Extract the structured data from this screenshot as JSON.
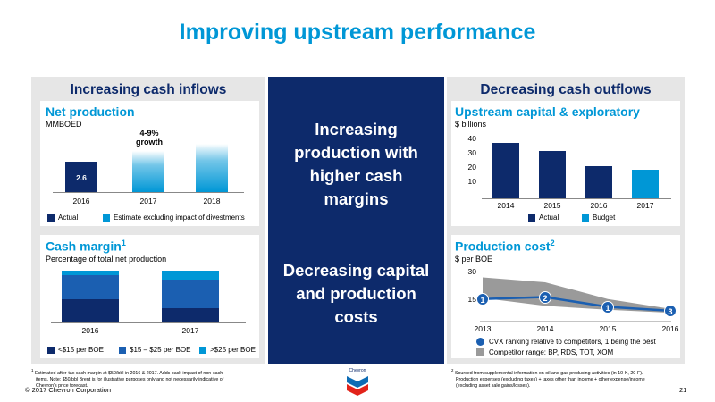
{
  "title": "Improving upstream performance",
  "left": {
    "header": "Increasing cash inflows",
    "net_production": {
      "title": "Net production",
      "unit": "MMBOED",
      "growth_label_line1": "4-9%",
      "growth_label_line2": "growth",
      "value_label": "2.6",
      "legend": [
        "Actual",
        "Estimate excluding impact of divestments"
      ]
    },
    "cash_margin": {
      "title": "Cash margin",
      "title_sup": "1",
      "unit": "Percentage of total net production",
      "legend": [
        "<$15 per BOE",
        "$15 – $25 per BOE",
        ">$25 per BOE"
      ]
    }
  },
  "center": {
    "text1_lines": [
      "Increasing",
      "production with",
      "higher cash",
      "margins"
    ],
    "text2_lines": [
      "Decreasing capital",
      "and production",
      "costs"
    ]
  },
  "right": {
    "header": "Decreasing cash outflows",
    "capex": {
      "title": "Upstream capital & exploratory",
      "unit": "$ billions",
      "legend": [
        "Actual",
        "Budget"
      ]
    },
    "production_cost": {
      "title": "Production cost",
      "title_sup": "2",
      "unit": "$ per BOE",
      "legend": [
        "CVX ranking relative to competitors, 1 being the best",
        "Competitor range: BP, RDS, TOT, XOM"
      ]
    }
  },
  "footnotes": {
    "left": [
      "Estimated after-tax cash margin at $50/bbl in 2016 & 2017. Adds back impact of non-cash",
      "items. Note: $50/bbl Brent is for illustrative purposes only and not necessarily indicative of",
      "Chevron's price forecast."
    ],
    "left_sup": "1",
    "right": [
      "Sourced from supplemental information on oil and gas producing activities (in 10-K, 20-F).",
      "Production expenses (excluding taxes) + taxes other than income + other expense/income",
      "(excluding asset sale gains/losses)."
    ],
    "right_sup": "2"
  },
  "logo_text": "Chevron",
  "copyright": "© 2017 Chevron Corporation",
  "page_number": "21",
  "chart_data": [
    {
      "type": "bar",
      "title": "Net production",
      "ylabel": "MMBOED",
      "categories": [
        "2016",
        "2017",
        "2018"
      ],
      "series": [
        {
          "name": "Actual",
          "values": [
            2.6,
            null,
            null
          ]
        },
        {
          "name": "Estimate excluding impact of divestments",
          "values": [
            null,
            2.8,
            3.0
          ]
        }
      ],
      "annotations": [
        "2.6",
        "4-9% growth"
      ]
    },
    {
      "type": "bar",
      "stacked": true,
      "title": "Cash margin",
      "ylabel": "Percentage of total net production",
      "categories": [
        "2016",
        "2017"
      ],
      "series": [
        {
          "name": "<$15 per BOE",
          "values": [
            46,
            28
          ]
        },
        {
          "name": "$15 – $25 per BOE",
          "values": [
            46,
            56
          ]
        },
        {
          "name": ">$25 per BOE",
          "values": [
            8,
            16
          ]
        }
      ]
    },
    {
      "type": "bar",
      "title": "Upstream capital & exploratory",
      "ylabel": "$ billions",
      "categories": [
        "2014",
        "2015",
        "2016",
        "2017"
      ],
      "yticks": [
        10,
        20,
        30,
        40
      ],
      "ylim": [
        0,
        45
      ],
      "series": [
        {
          "name": "Actual",
          "values": [
            40,
            34,
            22,
            null
          ]
        },
        {
          "name": "Budget",
          "values": [
            null,
            null,
            null,
            20
          ]
        }
      ]
    },
    {
      "type": "line",
      "title": "Production cost",
      "ylabel": "$ per BOE",
      "x": [
        "2013",
        "2014",
        "2015",
        "2016"
      ],
      "yticks": [
        15,
        30
      ],
      "ylim": [
        5,
        30
      ],
      "series": [
        {
          "name": "CVX ranking relative to competitors, 1 being the best",
          "values": [
            16.5,
            17.5,
            12.5,
            10.5
          ],
          "ranks": [
            "1",
            "2",
            "1",
            "3"
          ]
        },
        {
          "name": "Competitor range: BP, RDS, TOT, XOM",
          "upper": [
            27.5,
            25,
            16.5,
            11.5
          ],
          "lower": [
            17,
            13,
            11,
            9.5
          ]
        }
      ]
    }
  ]
}
